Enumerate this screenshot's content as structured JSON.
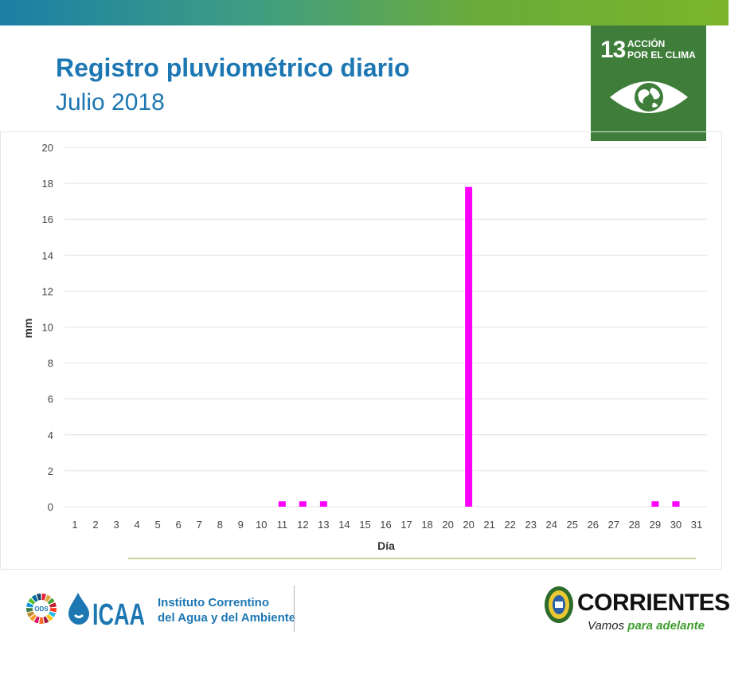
{
  "header": {
    "title": "Registro pluviométrico diario",
    "subtitle": "Julio 2018"
  },
  "sdg_badge": {
    "number": "13",
    "line1": "ACCIÓN",
    "line2": "POR EL CLIMA",
    "color": "#3f7e3a",
    "icon": "eye-globe-icon"
  },
  "chart_data": {
    "type": "bar",
    "categories": [
      "1",
      "2",
      "3",
      "4",
      "5",
      "6",
      "7",
      "8",
      "9",
      "10",
      "11",
      "12",
      "13",
      "14",
      "15",
      "16",
      "17",
      "18",
      "20",
      "20",
      "21",
      "22",
      "23",
      "24",
      "25",
      "26",
      "27",
      "28",
      "29",
      "30",
      "31"
    ],
    "values": [
      0,
      0,
      0,
      0,
      0,
      0,
      0,
      0,
      0,
      0,
      0.3,
      0.3,
      0.3,
      0,
      0,
      0,
      0,
      0,
      0,
      17.8,
      0,
      0,
      0,
      0,
      0,
      0,
      0,
      0,
      0.3,
      0.3,
      0
    ],
    "xlabel": "Día",
    "ylabel": "mm",
    "ylim": [
      0,
      20
    ],
    "yticks": [
      0,
      2,
      4,
      6,
      8,
      10,
      12,
      14,
      16,
      18,
      20
    ],
    "grid": true,
    "legend": "none",
    "bar_color": "#ff00ff"
  },
  "footer": {
    "ods_label": "ODS",
    "ods_icon": "sdg-wheel-icon",
    "icaa_logo": "ICAA",
    "institute_line1": "Instituto Correntino",
    "institute_line2": "del Agua y del Ambiente",
    "province_name": "CORRIENTES",
    "slogan_a": "Vamos ",
    "slogan_b": "para adelante",
    "seal_icon": "province-seal-icon"
  }
}
